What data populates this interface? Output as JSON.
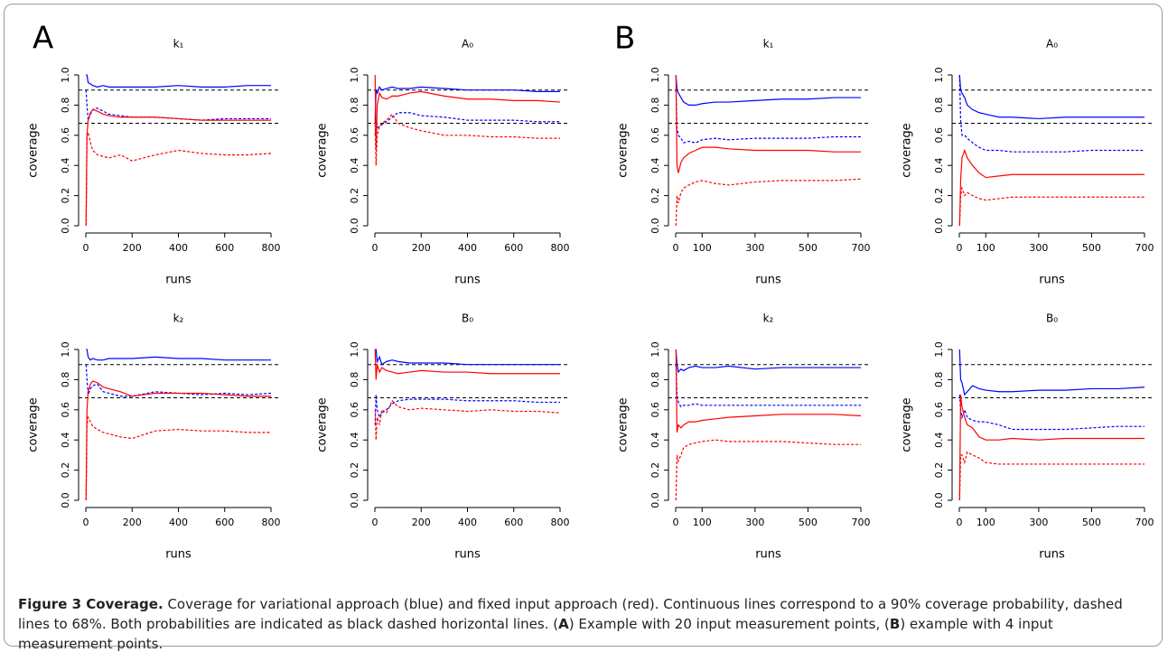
{
  "panels": [
    "A",
    "B"
  ],
  "caption": {
    "label": "Figure 3 Coverage.",
    "parts": [
      {
        "text": "Coverage for variational approach (blue) and fixed input approach (red). Continuous lines correspond to a 90% coverage probability, dashed lines to 68%. Both probabilities are indicated as black dashed horizontal lines. (",
        "bold": false
      },
      {
        "text": "A",
        "bold": true
      },
      {
        "text": ") Example with 20 input measurement points, (",
        "bold": false
      },
      {
        "text": "B",
        "bold": true
      },
      {
        "text": ") example with 4 input measurement points.",
        "bold": false
      }
    ]
  },
  "chart_data": [
    {
      "type": "line",
      "title": "k₁",
      "xlabel": "runs",
      "ylabel": "coverage",
      "xlim": [
        0,
        800
      ],
      "ylim": [
        0,
        1
      ],
      "xticks": [
        0,
        200,
        400,
        600,
        800
      ],
      "yticks": [
        {
          "value": 0,
          "label": "0.0"
        },
        0.2,
        0.4,
        0.6,
        0.8,
        {
          "value": 1,
          "label": "1.0"
        }
      ],
      "hlines": [
        0.9,
        0.68
      ],
      "hline_color": "#000000",
      "x": [
        1,
        5,
        10,
        20,
        30,
        50,
        75,
        100,
        150,
        200,
        300,
        400,
        500,
        600,
        700,
        800
      ],
      "series": [
        {
          "color": "#0000ff",
          "style": "solid",
          "values": [
            1,
            1,
            0.95,
            0.94,
            0.93,
            0.92,
            0.93,
            0.92,
            0.92,
            0.92,
            0.92,
            0.93,
            0.92,
            0.92,
            0.93,
            0.93
          ]
        },
        {
          "color": "#0000ff",
          "style": "dashed",
          "values": [
            0.9,
            0.8,
            0.7,
            0.74,
            0.77,
            0.78,
            0.76,
            0.74,
            0.73,
            0.72,
            0.72,
            0.71,
            0.7,
            0.71,
            0.71,
            0.71
          ]
        },
        {
          "color": "#ff0000",
          "style": "solid",
          "values": [
            0,
            0.6,
            0.7,
            0.75,
            0.77,
            0.76,
            0.74,
            0.73,
            0.72,
            0.72,
            0.72,
            0.71,
            0.7,
            0.7,
            0.7,
            0.7
          ]
        },
        {
          "color": "#ff0000",
          "style": "dashed",
          "values": [
            0,
            0.6,
            0.62,
            0.55,
            0.5,
            0.47,
            0.46,
            0.45,
            0.47,
            0.43,
            0.47,
            0.5,
            0.48,
            0.47,
            0.47,
            0.48
          ]
        }
      ]
    },
    {
      "type": "line",
      "title": "A₀",
      "xlabel": "runs",
      "ylabel": "coverage",
      "xlim": [
        0,
        800
      ],
      "ylim": [
        0,
        1
      ],
      "xticks": [
        0,
        200,
        400,
        600,
        800
      ],
      "yticks": [
        {
          "value": 0,
          "label": "0.0"
        },
        0.2,
        0.4,
        0.6,
        0.8,
        {
          "value": 1,
          "label": "1.0"
        }
      ],
      "hlines": [
        0.9,
        0.68
      ],
      "hline_color": "#000000",
      "x": [
        1,
        5,
        10,
        20,
        30,
        50,
        75,
        100,
        150,
        200,
        300,
        400,
        500,
        600,
        700,
        800
      ],
      "series": [
        {
          "color": "#0000ff",
          "style": "solid",
          "values": [
            0.7,
            0.9,
            0.88,
            0.92,
            0.9,
            0.91,
            0.92,
            0.91,
            0.91,
            0.92,
            0.91,
            0.9,
            0.9,
            0.9,
            0.89,
            0.89
          ]
        },
        {
          "color": "#0000ff",
          "style": "dashed",
          "values": [
            0.6,
            0.7,
            0.65,
            0.66,
            0.67,
            0.69,
            0.72,
            0.75,
            0.75,
            0.73,
            0.72,
            0.7,
            0.7,
            0.7,
            0.69,
            0.69
          ]
        },
        {
          "color": "#ff0000",
          "style": "solid",
          "values": [
            1,
            0.5,
            0.8,
            0.88,
            0.85,
            0.84,
            0.86,
            0.86,
            0.88,
            0.89,
            0.86,
            0.84,
            0.84,
            0.83,
            0.83,
            0.82
          ]
        },
        {
          "color": "#ff0000",
          "style": "dashed",
          "values": [
            0.7,
            0.4,
            0.6,
            0.66,
            0.68,
            0.7,
            0.74,
            0.68,
            0.65,
            0.63,
            0.6,
            0.6,
            0.59,
            0.59,
            0.58,
            0.58
          ]
        }
      ]
    },
    {
      "type": "line",
      "title": "k₁",
      "xlabel": "runs",
      "ylabel": "coverage",
      "xlim": [
        0,
        700
      ],
      "ylim": [
        0,
        1
      ],
      "xticks": [
        0,
        100,
        300,
        500,
        700
      ],
      "yticks": [
        {
          "value": 0,
          "label": "0.0"
        },
        0.2,
        0.4,
        0.6,
        0.8,
        {
          "value": 1,
          "label": "1.0"
        }
      ],
      "hlines": [
        0.9,
        0.68
      ],
      "hline_color": "#000000",
      "x": [
        1,
        5,
        10,
        20,
        30,
        50,
        75,
        100,
        150,
        200,
        300,
        400,
        500,
        600,
        700
      ],
      "series": [
        {
          "color": "#0000ff",
          "style": "solid",
          "values": [
            1,
            0.9,
            0.88,
            0.85,
            0.82,
            0.8,
            0.8,
            0.81,
            0.82,
            0.82,
            0.83,
            0.84,
            0.84,
            0.85,
            0.85
          ]
        },
        {
          "color": "#0000ff",
          "style": "dashed",
          "values": [
            0.9,
            0.65,
            0.6,
            0.58,
            0.55,
            0.56,
            0.55,
            0.57,
            0.58,
            0.57,
            0.58,
            0.58,
            0.58,
            0.59,
            0.59
          ]
        },
        {
          "color": "#ff0000",
          "style": "solid",
          "values": [
            1,
            0.4,
            0.35,
            0.42,
            0.45,
            0.48,
            0.5,
            0.52,
            0.52,
            0.51,
            0.5,
            0.5,
            0.5,
            0.49,
            0.49
          ]
        },
        {
          "color": "#ff0000",
          "style": "dashed",
          "values": [
            0,
            0.2,
            0.15,
            0.22,
            0.25,
            0.27,
            0.29,
            0.3,
            0.28,
            0.27,
            0.29,
            0.3,
            0.3,
            0.3,
            0.31
          ]
        }
      ]
    },
    {
      "type": "line",
      "title": "A₀",
      "xlabel": "runs",
      "ylabel": "coverage",
      "xlim": [
        0,
        700
      ],
      "ylim": [
        0,
        1
      ],
      "xticks": [
        0,
        100,
        300,
        500,
        700
      ],
      "yticks": [
        {
          "value": 0,
          "label": "0.0"
        },
        0.2,
        0.4,
        0.6,
        0.8,
        {
          "value": 1,
          "label": "1.0"
        }
      ],
      "hlines": [
        0.9,
        0.68
      ],
      "hline_color": "#000000",
      "x": [
        1,
        5,
        10,
        20,
        30,
        50,
        75,
        100,
        150,
        200,
        300,
        400,
        500,
        600,
        700
      ],
      "series": [
        {
          "color": "#0000ff",
          "style": "solid",
          "values": [
            1,
            0.9,
            0.88,
            0.85,
            0.8,
            0.77,
            0.75,
            0.74,
            0.72,
            0.72,
            0.71,
            0.72,
            0.72,
            0.72,
            0.72
          ]
        },
        {
          "color": "#0000ff",
          "style": "dashed",
          "values": [
            1,
            0.7,
            0.6,
            0.6,
            0.58,
            0.55,
            0.52,
            0.5,
            0.5,
            0.49,
            0.49,
            0.49,
            0.5,
            0.5,
            0.5
          ]
        },
        {
          "color": "#ff0000",
          "style": "solid",
          "values": [
            0,
            0.3,
            0.45,
            0.5,
            0.45,
            0.4,
            0.35,
            0.32,
            0.33,
            0.34,
            0.34,
            0.34,
            0.34,
            0.34,
            0.34
          ]
        },
        {
          "color": "#ff0000",
          "style": "dashed",
          "values": [
            0,
            0.2,
            0.25,
            0.2,
            0.22,
            0.2,
            0.18,
            0.17,
            0.18,
            0.19,
            0.19,
            0.19,
            0.19,
            0.19,
            0.19
          ]
        }
      ]
    },
    {
      "type": "line",
      "title": "k₂",
      "xlabel": "runs",
      "ylabel": "coverage",
      "xlim": [
        0,
        800
      ],
      "ylim": [
        0,
        1
      ],
      "xticks": [
        0,
        200,
        400,
        600,
        800
      ],
      "yticks": [
        {
          "value": 0,
          "label": "0.0"
        },
        0.2,
        0.4,
        0.6,
        0.8,
        {
          "value": 1,
          "label": "1.0"
        }
      ],
      "hlines": [
        0.9,
        0.68
      ],
      "hline_color": "#000000",
      "x": [
        1,
        5,
        10,
        20,
        30,
        50,
        75,
        100,
        150,
        200,
        300,
        400,
        500,
        600,
        700,
        800
      ],
      "series": [
        {
          "color": "#0000ff",
          "style": "solid",
          "values": [
            1,
            1,
            0.95,
            0.93,
            0.94,
            0.93,
            0.93,
            0.94,
            0.94,
            0.94,
            0.95,
            0.94,
            0.94,
            0.93,
            0.93,
            0.93
          ]
        },
        {
          "color": "#0000ff",
          "style": "dashed",
          "values": [
            0.9,
            0.8,
            0.7,
            0.74,
            0.76,
            0.77,
            0.72,
            0.71,
            0.69,
            0.69,
            0.72,
            0.71,
            0.7,
            0.71,
            0.7,
            0.71
          ]
        },
        {
          "color": "#ff0000",
          "style": "solid",
          "values": [
            0,
            0.6,
            0.72,
            0.77,
            0.79,
            0.78,
            0.75,
            0.74,
            0.72,
            0.69,
            0.71,
            0.71,
            0.71,
            0.7,
            0.69,
            0.69
          ]
        },
        {
          "color": "#ff0000",
          "style": "dashed",
          "values": [
            0,
            0.5,
            0.55,
            0.52,
            0.49,
            0.47,
            0.45,
            0.44,
            0.42,
            0.41,
            0.46,
            0.47,
            0.46,
            0.46,
            0.45,
            0.45
          ]
        }
      ]
    },
    {
      "type": "line",
      "title": "B₀",
      "xlabel": "runs",
      "ylabel": "coverage",
      "xlim": [
        0,
        800
      ],
      "ylim": [
        0,
        1
      ],
      "xticks": [
        0,
        200,
        400,
        600,
        800
      ],
      "yticks": [
        {
          "value": 0,
          "label": "0.0"
        },
        0.2,
        0.4,
        0.6,
        0.8,
        {
          "value": 1,
          "label": "1.0"
        }
      ],
      "hlines": [
        0.9,
        0.68
      ],
      "hline_color": "#000000",
      "x": [
        1,
        5,
        10,
        20,
        30,
        50,
        75,
        100,
        150,
        200,
        300,
        400,
        500,
        600,
        700,
        800
      ],
      "series": [
        {
          "color": "#0000ff",
          "style": "solid",
          "values": [
            1,
            1,
            0.92,
            0.95,
            0.9,
            0.92,
            0.93,
            0.92,
            0.91,
            0.91,
            0.91,
            0.9,
            0.9,
            0.9,
            0.9,
            0.9
          ]
        },
        {
          "color": "#0000ff",
          "style": "dashed",
          "values": [
            0.5,
            0.7,
            0.6,
            0.55,
            0.58,
            0.6,
            0.64,
            0.66,
            0.67,
            0.67,
            0.67,
            0.66,
            0.66,
            0.66,
            0.65,
            0.65
          ]
        },
        {
          "color": "#ff0000",
          "style": "solid",
          "values": [
            1,
            0.8,
            0.9,
            0.85,
            0.88,
            0.86,
            0.85,
            0.84,
            0.85,
            0.86,
            0.85,
            0.85,
            0.84,
            0.84,
            0.84,
            0.84
          ]
        },
        {
          "color": "#ff0000",
          "style": "dashed",
          "values": [
            0.6,
            0.4,
            0.55,
            0.5,
            0.6,
            0.58,
            0.66,
            0.62,
            0.6,
            0.61,
            0.6,
            0.59,
            0.6,
            0.59,
            0.59,
            0.58
          ]
        }
      ]
    },
    {
      "type": "line",
      "title": "k₂",
      "xlabel": "runs",
      "ylabel": "coverage",
      "xlim": [
        0,
        700
      ],
      "ylim": [
        0,
        1
      ],
      "xticks": [
        0,
        100,
        300,
        500,
        700
      ],
      "yticks": [
        {
          "value": 0,
          "label": "0.0"
        },
        0.2,
        0.4,
        0.6,
        0.8,
        {
          "value": 1,
          "label": "1.0"
        }
      ],
      "hlines": [
        0.9,
        0.68
      ],
      "hline_color": "#000000",
      "x": [
        1,
        5,
        10,
        20,
        30,
        50,
        75,
        100,
        150,
        200,
        300,
        400,
        500,
        600,
        700
      ],
      "series": [
        {
          "color": "#0000ff",
          "style": "solid",
          "values": [
            1,
            0.9,
            0.85,
            0.87,
            0.86,
            0.88,
            0.89,
            0.88,
            0.88,
            0.89,
            0.87,
            0.88,
            0.88,
            0.88,
            0.88
          ]
        },
        {
          "color": "#0000ff",
          "style": "dashed",
          "values": [
            0.9,
            0.7,
            0.65,
            0.62,
            0.63,
            0.63,
            0.64,
            0.63,
            0.63,
            0.63,
            0.63,
            0.63,
            0.63,
            0.63,
            0.63
          ]
        },
        {
          "color": "#ff0000",
          "style": "solid",
          "values": [
            1,
            0.45,
            0.5,
            0.48,
            0.5,
            0.52,
            0.52,
            0.53,
            0.54,
            0.55,
            0.56,
            0.57,
            0.57,
            0.57,
            0.56
          ]
        },
        {
          "color": "#ff0000",
          "style": "dashed",
          "values": [
            0,
            0.3,
            0.26,
            0.3,
            0.35,
            0.37,
            0.38,
            0.39,
            0.4,
            0.39,
            0.39,
            0.39,
            0.38,
            0.37,
            0.37
          ]
        }
      ]
    },
    {
      "type": "line",
      "title": "B₀",
      "xlabel": "runs",
      "ylabel": "coverage",
      "xlim": [
        0,
        700
      ],
      "ylim": [
        0,
        1
      ],
      "xticks": [
        0,
        100,
        300,
        500,
        700
      ],
      "yticks": [
        {
          "value": 0,
          "label": "0.0"
        },
        0.2,
        0.4,
        0.6,
        0.8,
        {
          "value": 1,
          "label": "1.0"
        }
      ],
      "hlines": [
        0.9,
        0.68
      ],
      "hline_color": "#000000",
      "x": [
        1,
        5,
        10,
        20,
        30,
        50,
        75,
        100,
        150,
        200,
        300,
        400,
        500,
        600,
        700
      ],
      "series": [
        {
          "color": "#0000ff",
          "style": "solid",
          "values": [
            1,
            0.8,
            0.78,
            0.7,
            0.72,
            0.76,
            0.74,
            0.73,
            0.72,
            0.72,
            0.73,
            0.73,
            0.74,
            0.74,
            0.75
          ]
        },
        {
          "color": "#0000ff",
          "style": "dashed",
          "values": [
            0.7,
            0.6,
            0.55,
            0.6,
            0.55,
            0.53,
            0.52,
            0.52,
            0.5,
            0.47,
            0.47,
            0.47,
            0.48,
            0.49,
            0.49
          ]
        },
        {
          "color": "#ff0000",
          "style": "solid",
          "values": [
            0,
            0.7,
            0.62,
            0.55,
            0.5,
            0.48,
            0.42,
            0.4,
            0.4,
            0.41,
            0.4,
            0.41,
            0.41,
            0.41,
            0.41
          ]
        },
        {
          "color": "#ff0000",
          "style": "dashed",
          "values": [
            0,
            0.3,
            0.3,
            0.25,
            0.32,
            0.3,
            0.28,
            0.25,
            0.24,
            0.24,
            0.24,
            0.24,
            0.24,
            0.24,
            0.24
          ]
        }
      ]
    }
  ]
}
